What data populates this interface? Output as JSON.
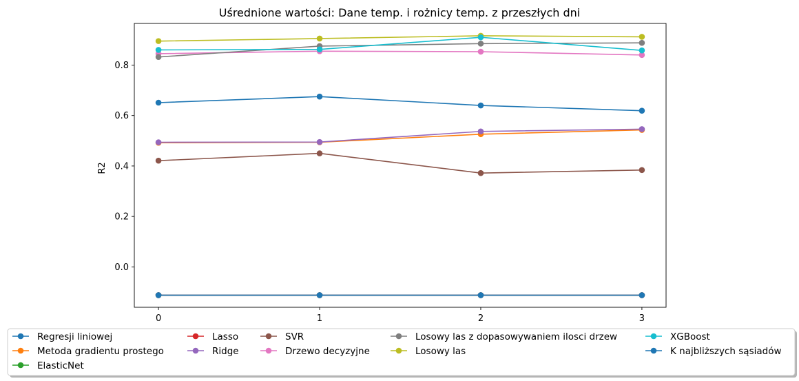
{
  "chart_data": {
    "type": "line",
    "title": "Uśrednione wartości: Dane temp. i rożnicy temp. z przeszłych dni",
    "xlabel": "",
    "ylabel": "R2",
    "x": [
      0,
      1,
      2,
      3
    ],
    "xlim": [
      -0.15,
      3.15
    ],
    "ylim": [
      -0.16,
      0.965
    ],
    "yticks": [
      0.0,
      0.2,
      0.4,
      0.6,
      0.8
    ],
    "ytick_labels": [
      "0.0",
      "0.2",
      "0.4",
      "0.6",
      "0.8"
    ],
    "xtick_labels": [
      "0",
      "1",
      "2",
      "3"
    ],
    "grid": false,
    "legend_placement": "bottom, below plot, 5 columns",
    "series": [
      {
        "name": "Regresji liniowej",
        "color": "#1f77b4",
        "values": [
          0.651,
          0.675,
          0.64,
          0.619
        ]
      },
      {
        "name": "Metoda gradientu prostego",
        "color": "#ff7f0e",
        "values": [
          0.492,
          0.494,
          0.526,
          0.543
        ]
      },
      {
        "name": "ElasticNet",
        "color": "#2ca02c",
        "values": [
          -0.112,
          -0.112,
          -0.112,
          -0.112
        ]
      },
      {
        "name": "Lasso",
        "color": "#d62728",
        "values": [
          -0.112,
          -0.112,
          -0.112,
          -0.112
        ]
      },
      {
        "name": "Ridge",
        "color": "#9467bd",
        "values": [
          0.494,
          0.495,
          0.537,
          0.546
        ]
      },
      {
        "name": "SVR",
        "color": "#8c564b",
        "values": [
          0.421,
          0.45,
          0.372,
          0.384
        ]
      },
      {
        "name": "Drzewo decyzyjne",
        "color": "#e377c2",
        "values": [
          0.845,
          0.855,
          0.853,
          0.84
        ]
      },
      {
        "name": "Losowy las z dopasowywaniem ilosci drzew",
        "color": "#7f7f7f",
        "values": [
          0.832,
          0.875,
          0.885,
          0.888
        ]
      },
      {
        "name": "Losowy las",
        "color": "#bcbd22",
        "values": [
          0.895,
          0.905,
          0.916,
          0.912
        ]
      },
      {
        "name": "XGBoost",
        "color": "#17becf",
        "values": [
          0.86,
          0.862,
          0.91,
          0.858
        ]
      },
      {
        "name": "K najbliższych sąsiadów",
        "color": "#1f77b4",
        "values": [
          -0.112,
          -0.112,
          -0.112,
          -0.112
        ]
      }
    ]
  }
}
